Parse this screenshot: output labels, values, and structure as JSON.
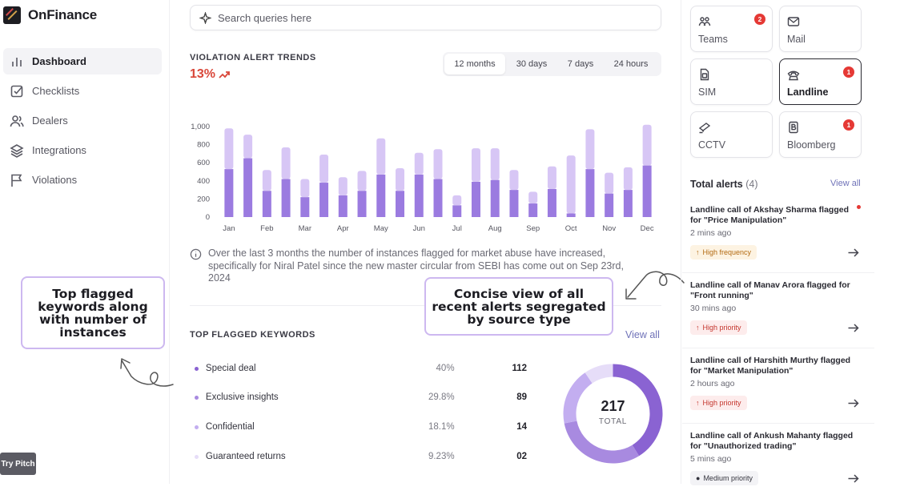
{
  "app": {
    "name": "OnFinance"
  },
  "sidebar": {
    "items": [
      {
        "label": "Dashboard",
        "icon": "bar-chart-icon",
        "active": true
      },
      {
        "label": "Checklists",
        "icon": "checkbox-icon",
        "active": false
      },
      {
        "label": "Dealers",
        "icon": "users-icon",
        "active": false
      },
      {
        "label": "Integrations",
        "icon": "layers-icon",
        "active": false
      },
      {
        "label": "Violations",
        "icon": "flag-icon",
        "active": false
      }
    ]
  },
  "try_pitch": "Try Pitch",
  "search": {
    "placeholder": "Search queries here"
  },
  "trends": {
    "title": "VIOLATION ALERT TRENDS",
    "change": "13%",
    "change_color": "#d9473a",
    "ranges": [
      "12 months",
      "30 days",
      "7 days",
      "24 hours"
    ],
    "selected_range": "12 months",
    "note": "Over the last 3 months the number of instances flagged for market abuse have increased, specifically for Niral Patel since the new master circular from SEBI has come out on Sep 23rd, 2024"
  },
  "chart_data": {
    "type": "bar",
    "stacked": true,
    "categories": [
      "Jan",
      "",
      "Feb",
      "",
      "Mar",
      "",
      "Apr",
      "",
      "May",
      "",
      "Jun",
      "",
      "Jul",
      "",
      "Aug",
      "",
      "Sep",
      "",
      "Oct",
      "",
      "Nov",
      "",
      "Dec"
    ],
    "series": [
      {
        "values": [
          530,
          650,
          290,
          420,
          220,
          380,
          240,
          290,
          470,
          290,
          470,
          420,
          130,
          390,
          410,
          300,
          150,
          310,
          40,
          530,
          260,
          300,
          570
        ],
        "color": "#9b7be0"
      },
      {
        "values": [
          450,
          260,
          230,
          350,
          200,
          310,
          200,
          220,
          400,
          250,
          240,
          330,
          110,
          370,
          350,
          220,
          130,
          250,
          640,
          440,
          230,
          250,
          450
        ],
        "color": "#d7c6f5"
      }
    ],
    "ylim": [
      0,
      1000
    ],
    "yticks": [
      0,
      200,
      400,
      600,
      800,
      1000
    ],
    "ytick_labels": [
      "0",
      "200",
      "400",
      "600",
      "800",
      "1,000"
    ],
    "grid": false
  },
  "keywords": {
    "title": "TOP FLAGGED KEYWORDS",
    "view_all": "View all",
    "rows": [
      {
        "name": "Special deal",
        "pct": "40%",
        "count": "112",
        "color": "#8a63d2"
      },
      {
        "name": "Exclusive insights",
        "pct": "29.8%",
        "count": "89",
        "color": "#a88ae0"
      },
      {
        "name": "Confidential",
        "pct": "18.1%",
        "count": "14",
        "color": "#c3aef0"
      },
      {
        "name": "Guaranteed returns",
        "pct": "9.23%",
        "count": "02",
        "color": "#e6ddf8"
      }
    ],
    "total": "217",
    "total_label": "TOTAL",
    "donut_shares": [
      40,
      29.8,
      18.1,
      9.23
    ]
  },
  "annotations": {
    "left": "Top flagged keywords along with number of instances",
    "middle": "Concise view of all recent alerts segregated by source type"
  },
  "sources": [
    {
      "label": "Teams",
      "icon": "teams-icon",
      "badge": "2",
      "selected": false
    },
    {
      "label": "Mail",
      "icon": "mail-icon",
      "badge": "",
      "selected": false
    },
    {
      "label": "SIM",
      "icon": "sim-icon",
      "badge": "",
      "selected": false
    },
    {
      "label": "Landline",
      "icon": "phone-icon",
      "badge": "1",
      "selected": true
    },
    {
      "label": "CCTV",
      "icon": "cctv-icon",
      "badge": "",
      "selected": false
    },
    {
      "label": "Bloomberg",
      "icon": "bloomberg-icon",
      "badge": "1",
      "selected": false
    }
  ],
  "alerts_panel": {
    "title": "Total alerts",
    "count": "(4)",
    "view_all": "View all",
    "alerts": [
      {
        "title": "Landline call of Akshay Sharma flagged for \"Price Manipulation\"",
        "time": "2 mins ago",
        "tag": "High frequency",
        "tag_type": "freq"
      },
      {
        "title": "Landline call of Manav Arora flagged for \"Front running\"",
        "time": "30 mins ago",
        "tag": "High priority",
        "tag_type": "prio"
      },
      {
        "title": "Landline call of Harshith Murthy flagged for \"Market Manipulation\"",
        "time": "2 hours ago",
        "tag": "High priority",
        "tag_type": "prio"
      },
      {
        "title": "Landline call of Ankush Mahanty flagged for \"Unauthorized trading\"",
        "time": "5 mins ago",
        "tag": "Medium priority",
        "tag_type": "med"
      }
    ]
  }
}
